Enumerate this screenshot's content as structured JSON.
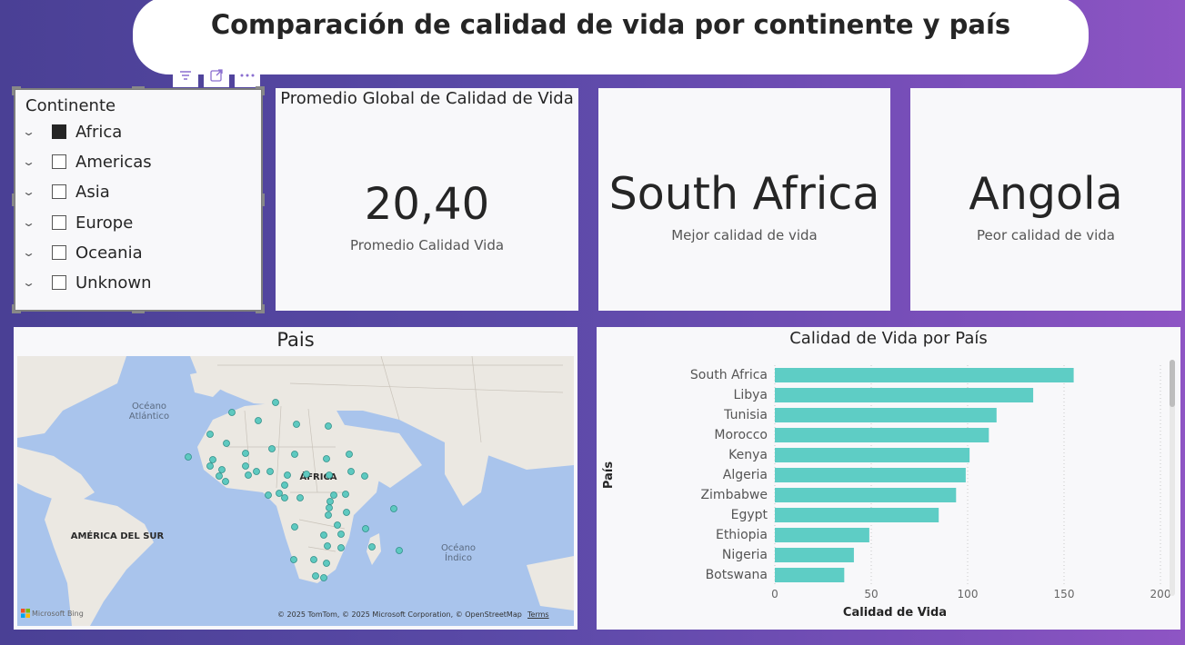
{
  "header": {
    "title": "Comparación de calidad de vida por continente y país"
  },
  "toolbar": {
    "icons": [
      "filter-icon",
      "focus-mode-icon",
      "more-options-icon"
    ]
  },
  "slicer": {
    "title": "Continente",
    "items": [
      {
        "label": "Africa",
        "checked": true
      },
      {
        "label": "Americas",
        "checked": false
      },
      {
        "label": "Asia",
        "checked": false
      },
      {
        "label": "Europe",
        "checked": false
      },
      {
        "label": "Oceania",
        "checked": false
      },
      {
        "label": "Unknown",
        "checked": false
      }
    ]
  },
  "kpi_avg": {
    "title": "Promedio Global de Calidad de Vida",
    "value": "20,40",
    "label": "Promedio Calidad Vida"
  },
  "kpi_best": {
    "value": "South Africa",
    "label": "Mejor calidad de vida"
  },
  "kpi_worst": {
    "value": "Angola",
    "label": "Peor calidad de vida"
  },
  "map": {
    "title": "Pais",
    "labels": {
      "atlantic": "Océano Atlántico",
      "africa": "ÁFRICA",
      "south_america": "AMÉRICA DEL SUR",
      "indian": "Océano Índico"
    },
    "attribution": "© 2025 TomTom, © 2025 Microsoft Corporation, © OpenStreetMap",
    "terms": "Terms",
    "logo": "Microsoft Bing",
    "colors": {
      "water": "#a9c4ec",
      "land": "#ebe8e2",
      "point": "#5ec9c0"
    }
  },
  "chart_data": {
    "type": "bar",
    "orientation": "horizontal",
    "title": "Calidad de Vida por País",
    "xlabel": "Calidad de Vida",
    "ylabel": "País",
    "categories": [
      "South Africa",
      "Libya",
      "Tunisia",
      "Morocco",
      "Kenya",
      "Algeria",
      "Zimbabwe",
      "Egypt",
      "Ethiopia",
      "Nigeria",
      "Botswana"
    ],
    "values": [
      155,
      134,
      115,
      111,
      101,
      99,
      94,
      85,
      49,
      41,
      36
    ],
    "xlim": [
      0,
      200
    ],
    "xticks": [
      0,
      50,
      100,
      150,
      200
    ],
    "grid": true,
    "color": "#5ecdc5"
  }
}
